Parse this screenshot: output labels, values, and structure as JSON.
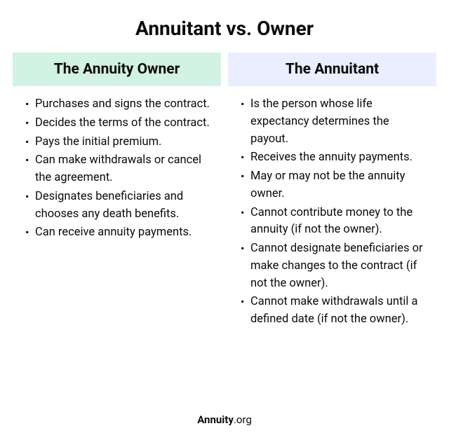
{
  "title": "Annuitant vs. Owner",
  "columns": {
    "owner": {
      "header": "The Annuity Owner",
      "header_bg": "#d2f2e3",
      "items": [
        "Purchases and signs the contract.",
        "Decides the terms of the contract.",
        "Pays the initial premium.",
        "Can make withdrawals or cancel the agreement.",
        "Designates beneficiaries and chooses any death benefits.",
        "Can receive annuity payments."
      ]
    },
    "annuitant": {
      "header": "The Annuitant",
      "header_bg": "#eaeefe",
      "items": [
        "Is the person whose life expectancy determines the payout.",
        "Receives the annuity payments.",
        "May or may not be the annuity owner.",
        "Cannot contribute money to the annuity (if not the owner).",
        "Cannot designate beneficiaries or make changes to the contract (if not the owner).",
        "Cannot make withdrawals until a defined date (if not the owner)."
      ]
    }
  },
  "footer": {
    "brand": "Annuity",
    "tld": ".org"
  },
  "style": {
    "background": "#ffffff",
    "title_fontsize": 28,
    "header_fontsize": 21,
    "body_fontsize": 16.5,
    "text_color": "#0c0c0c"
  }
}
